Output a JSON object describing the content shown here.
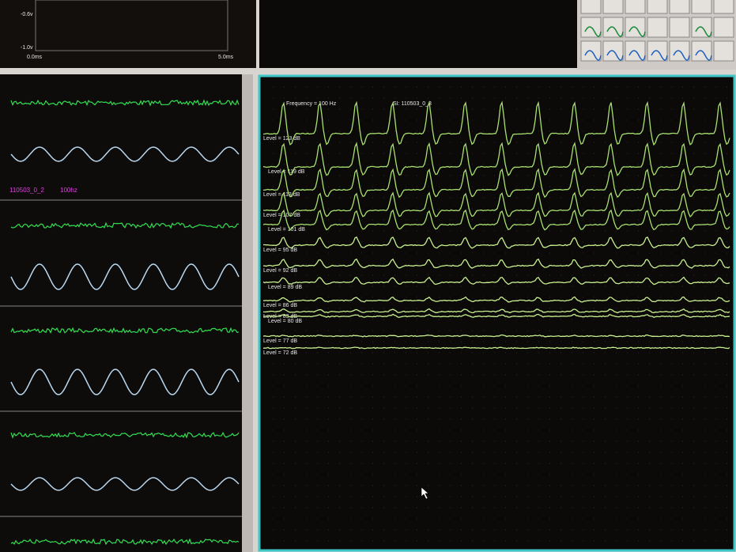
{
  "scope": {
    "y_labels": [
      "-0.6v",
      "-1.0v"
    ],
    "x_labels": [
      "0.0ms",
      "5.0ms"
    ]
  },
  "trace_panel": {
    "file": "110503_0_2",
    "freq": "100hz"
  },
  "response_panel": {
    "frequency": "Frequency = 100 Hz",
    "file": "SI: 110503_0_3",
    "levels": [
      "Level = 123 dB",
      "Level = 119 dB",
      "Level = 113 dB",
      "Level = 107 dB",
      "Level = 101 dB",
      "Level = 95 dB",
      "Level = 92 dB",
      "Level = 89 dB",
      "Level = 86 dB",
      "Level = 83 dB",
      "Level = 80 dB",
      "Level = 77 dB",
      "Level = 72 dB"
    ]
  }
}
